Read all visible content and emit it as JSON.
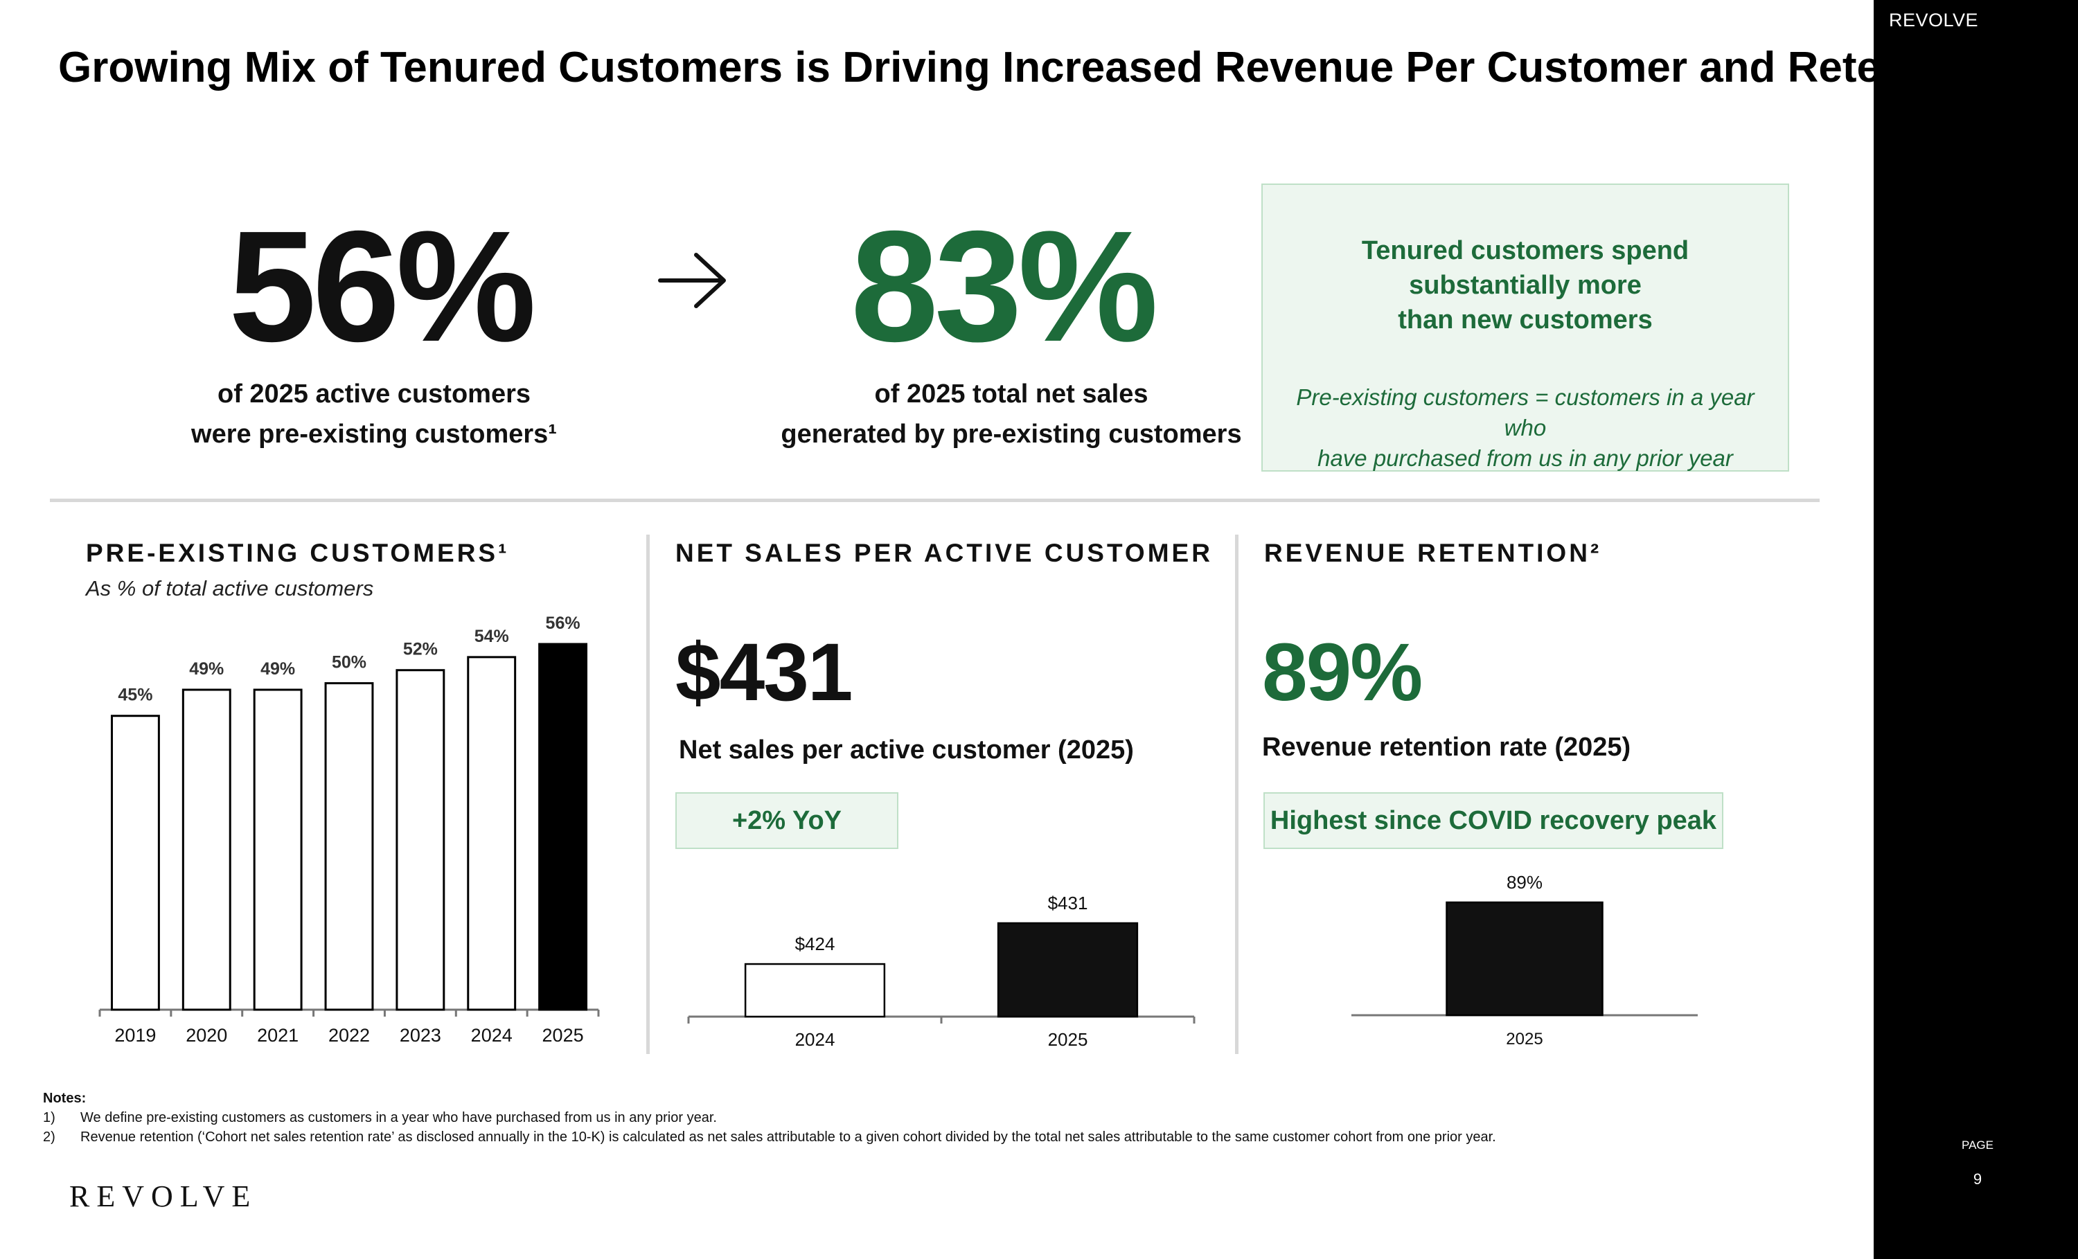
{
  "title": "Growing Mix of Tenured Customers is Driving Increased Revenue Per Customer and Retention",
  "sidebar": {
    "brand": "REVOLVE",
    "page_label": "PAGE",
    "page_number": "9"
  },
  "hero": {
    "left_value": "56%",
    "left_caption_line1": "of 2025 active customers",
    "left_caption_line2": "were pre-existing customers¹",
    "arrow_icon": "right-arrow-icon",
    "right_value": "83%",
    "right_caption_line1": "of 2025 total net sales",
    "right_caption_line2": "generated by pre-existing customers",
    "callout_heading_line1": "Tenured customers spend",
    "callout_heading_line2": "substantially more",
    "callout_heading_line3": "than new customers",
    "callout_sub_line1": "Pre-existing customers = customers in a year who",
    "callout_sub_line2": "have purchased from us in any prior year"
  },
  "colors": {
    "green": "#1d6b3a",
    "callout_bg": "#edf6ef",
    "callout_border": "#bfe0c7",
    "black": "#000000",
    "bar_dark": "#111111"
  },
  "sections": {
    "preexisting": {
      "title": "PRE-EXISTING CUSTOMERS¹",
      "subtitle": "As % of total active customers"
    },
    "net_sales": {
      "title": "NET SALES PER ACTIVE CUSTOMER",
      "kpi": "$431",
      "kpi_label": "Net sales per active customer (2025)",
      "badge": "+2% YoY"
    },
    "retention": {
      "title": "REVENUE RETENTION²",
      "kpi": "89%",
      "kpi_label": "Revenue retention rate (2025)",
      "badge": "Highest since COVID recovery peak"
    }
  },
  "chart_data": [
    {
      "type": "bar",
      "title": "PRE-EXISTING CUSTOMERS¹",
      "subtitle": "As % of total active customers",
      "categories": [
        "2019",
        "2020",
        "2021",
        "2022",
        "2023",
        "2024",
        "2025"
      ],
      "values": [
        45,
        49,
        49,
        50,
        52,
        54,
        56
      ],
      "data_labels": [
        "45%",
        "49%",
        "49%",
        "50%",
        "52%",
        "54%",
        "56%"
      ],
      "highlight_index": 6,
      "ylim": [
        0,
        56
      ],
      "grid": false
    },
    {
      "type": "bar",
      "title": "NET SALES PER ACTIVE CUSTOMER",
      "categories": [
        "2024",
        "2025"
      ],
      "values": [
        424,
        431
      ],
      "data_labels": [
        "$424",
        "$431"
      ],
      "highlight_index": 1,
      "ylim": [
        415,
        431
      ],
      "grid": false
    },
    {
      "type": "bar",
      "title": "REVENUE RETENTION²",
      "categories": [
        "2025"
      ],
      "values": [
        89
      ],
      "data_labels": [
        "89%"
      ],
      "highlight_index": 0,
      "ylim": [
        0,
        89
      ],
      "grid": false
    }
  ],
  "notes": {
    "heading": "Notes:",
    "items": [
      {
        "num": "1)",
        "text": "We define pre-existing customers as customers in a year who have purchased from us in any prior year."
      },
      {
        "num": "2)",
        "text": "Revenue retention (‘Cohort net sales retention rate’ as disclosed annually in the 10-K) is calculated as net sales attributable to a given cohort divided by the total net sales attributable to the same customer cohort from one prior year."
      }
    ]
  },
  "footer_logo": "REVOLVE"
}
